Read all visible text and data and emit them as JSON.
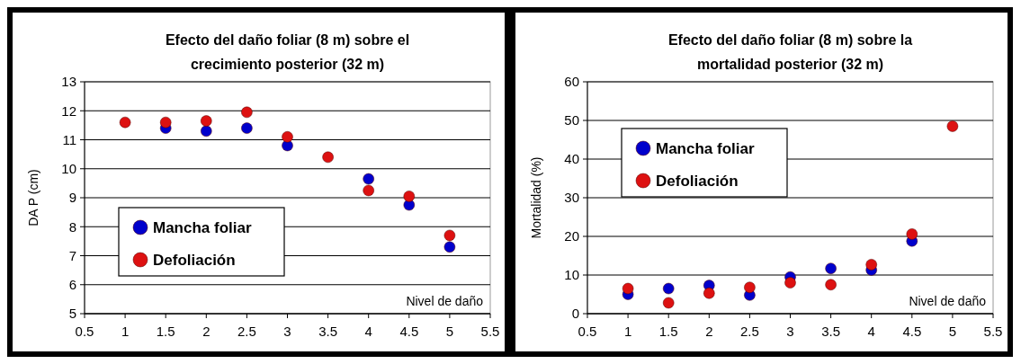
{
  "chart_data": [
    {
      "type": "scatter",
      "title": "Efecto del daño foliar (8 m) sobre el crecimiento posterior (32 m)",
      "xlabel": "Nivel de daño",
      "ylabel": "DA P (cm)",
      "x": [
        1,
        1.5,
        2,
        2.5,
        3,
        3.5,
        4,
        4.5,
        5
      ],
      "series": [
        {
          "name": "Mancha foliar",
          "color": "#0000cc",
          "values": [
            null,
            11.4,
            11.3,
            11.4,
            10.8,
            null,
            9.65,
            8.75,
            7.3
          ]
        },
        {
          "name": "Defoliación",
          "color": "#dd1111",
          "values": [
            11.6,
            11.6,
            11.65,
            11.95,
            11.1,
            10.4,
            9.25,
            9.05,
            7.7
          ]
        }
      ],
      "xlim": [
        0.5,
        5.5
      ],
      "xticks": [
        0.5,
        1,
        1.5,
        2,
        2.5,
        3,
        3.5,
        4,
        4.5,
        5,
        5.5
      ],
      "ylim": [
        5,
        13
      ],
      "yticks": [
        5,
        6,
        7,
        8,
        9,
        10,
        11,
        12,
        13
      ],
      "grid": "y",
      "legend": "bottom left",
      "marker": "circle"
    },
    {
      "type": "scatter",
      "title": "Efecto del daño foliar (8 m) sobre la mortalidad posterior (32 m)",
      "xlabel": "Nivel de daño",
      "ylabel": "Mortalidad (%)",
      "x": [
        1,
        1.5,
        2,
        2.5,
        3,
        3.5,
        4,
        4.5,
        5
      ],
      "series": [
        {
          "name": "Mancha foliar",
          "color": "#0000cc",
          "values": [
            5,
            6.5,
            7.3,
            4.8,
            9.5,
            11.7,
            11.3,
            18.8,
            null
          ]
        },
        {
          "name": "Defoliación",
          "color": "#dd1111",
          "values": [
            6.5,
            2.8,
            5.3,
            6.8,
            8,
            7.5,
            12.7,
            20.6,
            48.5
          ]
        }
      ],
      "xlim": [
        0.5,
        5.5
      ],
      "xticks": [
        0.5,
        1,
        1.5,
        2,
        2.5,
        3,
        3.5,
        4,
        4.5,
        5,
        5.5
      ],
      "ylim": [
        0,
        60
      ],
      "yticks": [
        0,
        10,
        20,
        30,
        40,
        50,
        60
      ],
      "grid": "y",
      "legend": "top left",
      "marker": "circle"
    }
  ]
}
